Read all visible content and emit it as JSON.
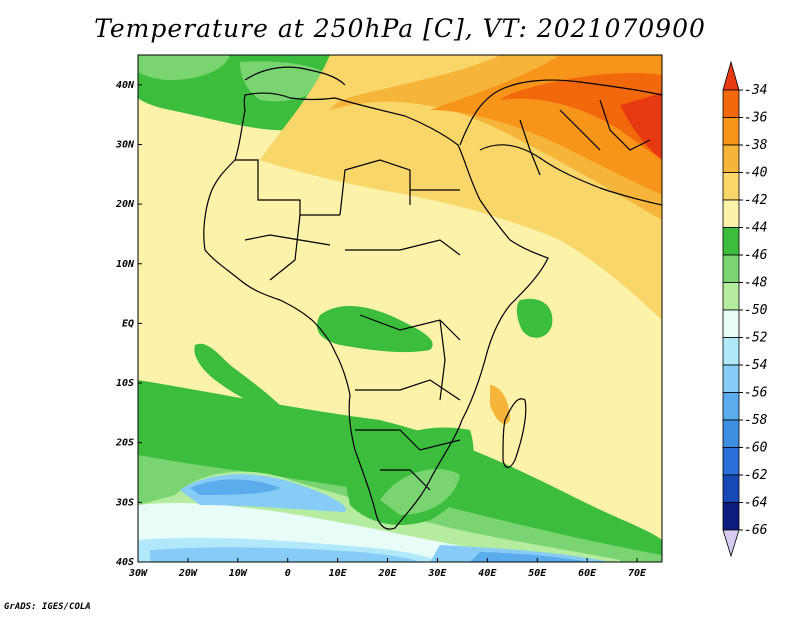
{
  "title": "Temperature at 250hPa [C], VT: 2021070900",
  "credit": "GrADS: IGES/COLA",
  "map": {
    "lon_range": [
      -30,
      75
    ],
    "lat_range": [
      -40,
      45
    ],
    "lon_ticks": [
      {
        "value": -30,
        "label": "30W"
      },
      {
        "value": -20,
        "label": "20W"
      },
      {
        "value": -10,
        "label": "10W"
      },
      {
        "value": 0,
        "label": "0"
      },
      {
        "value": 10,
        "label": "10E"
      },
      {
        "value": 20,
        "label": "20E"
      },
      {
        "value": 30,
        "label": "30E"
      },
      {
        "value": 40,
        "label": "40E"
      },
      {
        "value": 50,
        "label": "50E"
      },
      {
        "value": 60,
        "label": "60E"
      },
      {
        "value": 70,
        "label": "70E"
      }
    ],
    "lat_ticks": [
      {
        "value": 40,
        "label": "40N"
      },
      {
        "value": 30,
        "label": "30N"
      },
      {
        "value": 20,
        "label": "20N"
      },
      {
        "value": 10,
        "label": "10N"
      },
      {
        "value": 0,
        "label": "EQ"
      },
      {
        "value": -10,
        "label": "10S"
      },
      {
        "value": -20,
        "label": "20S"
      },
      {
        "value": -30,
        "label": "30S"
      },
      {
        "value": -40,
        "label": "40S"
      }
    ]
  },
  "colorbar": {
    "labels": [
      "-34",
      "-36",
      "-38",
      "-40",
      "-42",
      "-44",
      "-46",
      "-48",
      "-50",
      "-52",
      "-54",
      "-56",
      "-58",
      "-60",
      "-62",
      "-64",
      "-66"
    ],
    "colors": [
      "#e83a12",
      "#f2680c",
      "#f7941a",
      "#f5b53b",
      "#f9d66a",
      "#fdf2a9",
      "#3dbd3d",
      "#79d471",
      "#b5ec9f",
      "#e8fdf8",
      "#b1e9fb",
      "#86ccf6",
      "#5aacec",
      "#3e8ee2",
      "#2a6ed8",
      "#1848b6",
      "#0c1c7e",
      "#d6ccf2"
    ]
  }
}
